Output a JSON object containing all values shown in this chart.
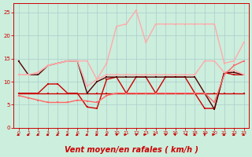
{
  "background_color": "#cceedd",
  "grid_color": "#aacccc",
  "xlabel": "Vent moyen/en rafales ( km/h )",
  "xlabel_color": "#cc0000",
  "xlabel_fontsize": 7,
  "tick_color": "#cc0000",
  "xlim": [
    -0.5,
    23.5
  ],
  "ylim": [
    0,
    27
  ],
  "yticks": [
    0,
    5,
    10,
    15,
    20,
    25
  ],
  "xticks": [
    0,
    1,
    2,
    3,
    4,
    5,
    6,
    7,
    8,
    9,
    10,
    11,
    12,
    13,
    14,
    15,
    16,
    17,
    18,
    19,
    20,
    21,
    22,
    23
  ],
  "series": [
    {
      "x": [
        0,
        1,
        2,
        3,
        4,
        5,
        6,
        7,
        8,
        9,
        10,
        11,
        12,
        13,
        14,
        15,
        16,
        17,
        18,
        19,
        20,
        21,
        22,
        23
      ],
      "y": [
        7.5,
        7.5,
        7.5,
        7.5,
        7.5,
        7.5,
        7.5,
        7.5,
        7.5,
        7.5,
        7.5,
        7.5,
        7.5,
        7.5,
        7.5,
        7.5,
        7.5,
        7.5,
        7.5,
        7.5,
        7.5,
        7.5,
        7.5,
        7.5
      ],
      "color": "#cc0000",
      "lw": 1.0,
      "marker": "s",
      "markersize": 2.0
    },
    {
      "x": [
        0,
        1,
        2,
        3,
        4,
        5,
        6,
        7,
        8,
        9,
        10,
        11,
        12,
        13,
        14,
        15,
        16,
        17,
        18,
        19,
        20,
        21,
        22,
        23
      ],
      "y": [
        7.5,
        7.5,
        7.5,
        9.5,
        9.5,
        7.5,
        7.5,
        4.5,
        4.2,
        10.5,
        11,
        7.5,
        11,
        11,
        7.5,
        11,
        11,
        11,
        7.5,
        4.2,
        4.2,
        12,
        11.5,
        11.5
      ],
      "color": "#cc0000",
      "lw": 1.0,
      "marker": "s",
      "markersize": 2.0
    },
    {
      "x": [
        0,
        1,
        2,
        3,
        4,
        5,
        6,
        7,
        8,
        9,
        10,
        11,
        12,
        13,
        14,
        15,
        16,
        17,
        18,
        19,
        20,
        21,
        22,
        23
      ],
      "y": [
        14.5,
        11.5,
        11.5,
        13.5,
        14.0,
        14.5,
        14.5,
        7.5,
        10.0,
        11.0,
        11.0,
        11.0,
        11.0,
        11.0,
        11.0,
        11.0,
        11.0,
        11.0,
        11.0,
        7.5,
        4.0,
        12.0,
        12.0,
        11.5
      ],
      "color": "#550000",
      "lw": 1.0,
      "marker": "s",
      "markersize": 2.0
    },
    {
      "x": [
        0,
        1,
        2,
        3,
        4,
        5,
        6,
        7,
        8,
        9,
        10,
        11,
        12,
        13,
        14,
        15,
        16,
        17,
        18,
        19,
        20,
        21,
        22,
        23
      ],
      "y": [
        11.5,
        11.5,
        12.0,
        13.5,
        14.0,
        14.5,
        14.5,
        9.0,
        10.5,
        11.5,
        11.5,
        11.5,
        11.5,
        11.5,
        11.5,
        11.5,
        11.5,
        11.5,
        11.5,
        14.5,
        14.5,
        12.0,
        12.5,
        11.5
      ],
      "color": "#ffaaaa",
      "lw": 1.0,
      "marker": "s",
      "markersize": 2.0
    },
    {
      "x": [
        0,
        1,
        2,
        3,
        4,
        5,
        6,
        7,
        8,
        9,
        10,
        11,
        12,
        13,
        14,
        15,
        16,
        17,
        18,
        19,
        20,
        21,
        22,
        23
      ],
      "y": [
        11.5,
        11.5,
        12.0,
        13.5,
        14.0,
        14.5,
        14.5,
        14.5,
        10.5,
        14.0,
        22.0,
        22.5,
        25.5,
        18.5,
        22.5,
        22.5,
        22.5,
        22.5,
        22.5,
        22.5,
        22.5,
        14.0,
        14.5,
        18.5
      ],
      "color": "#ffaaaa",
      "lw": 1.0,
      "marker": "s",
      "markersize": 2.0
    },
    {
      "x": [
        0,
        1,
        2,
        3,
        4,
        5,
        6,
        7,
        8,
        9,
        10,
        11,
        12,
        13,
        14,
        15,
        16,
        17,
        18,
        19,
        20,
        21,
        22,
        23
      ],
      "y": [
        7.0,
        6.5,
        6.0,
        5.5,
        5.5,
        5.5,
        6.0,
        5.8,
        5.5,
        7.0,
        7.5,
        7.5,
        7.5,
        7.5,
        7.5,
        7.5,
        7.5,
        7.5,
        7.5,
        7.5,
        5.5,
        11.5,
        13.5,
        14.5
      ],
      "color": "#ff6666",
      "lw": 1.0,
      "marker": "s",
      "markersize": 2.0
    }
  ],
  "wind_arrows_angles": [
    225,
    225,
    225,
    225,
    225,
    225,
    225,
    225,
    225,
    225,
    45,
    90,
    45,
    90,
    90,
    45,
    315,
    270,
    225,
    180,
    90,
    225,
    225,
    225
  ]
}
